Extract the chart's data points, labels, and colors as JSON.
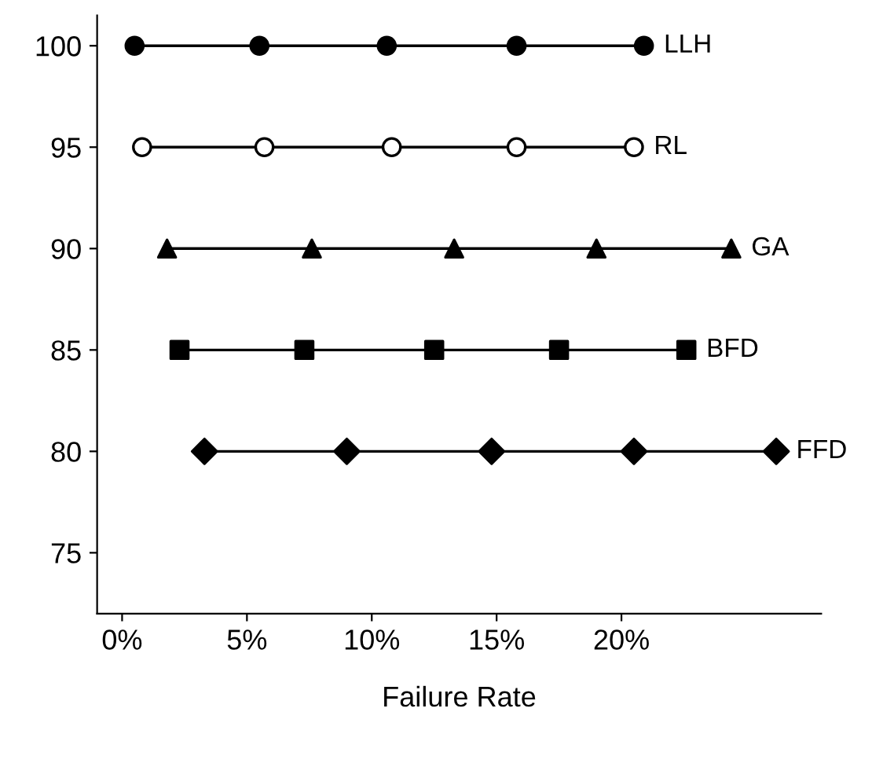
{
  "chart_data": {
    "type": "line",
    "xlabel": "Failure Rate",
    "xlim": [
      -1,
      28
    ],
    "ylim": [
      72,
      101.5
    ],
    "xticks": [
      {
        "value": 0,
        "label": "0%"
      },
      {
        "value": 5,
        "label": "5%"
      },
      {
        "value": 10,
        "label": "10%"
      },
      {
        "value": 15,
        "label": "15%"
      },
      {
        "value": 20,
        "label": "20%"
      }
    ],
    "yticks": [
      75,
      80,
      85,
      90,
      95,
      100
    ],
    "grid": false,
    "legend": false,
    "line_style": "solid",
    "series": [
      {
        "name": "LLH",
        "color": "#000000",
        "marker": "circle",
        "x": [
          0.5,
          5.5,
          10.6,
          15.8,
          20.9
        ],
        "values": [
          100,
          100,
          100,
          100,
          100
        ]
      },
      {
        "name": "RL",
        "color": "#000000",
        "marker": "circle",
        "colors": [
          "#ffffff",
          "#ffffff",
          "#ffffff",
          "#ffffff",
          "#ffffff"
        ],
        "x": [
          0.8,
          5.7,
          10.8,
          15.8,
          20.5
        ],
        "values": [
          95,
          95,
          95,
          95,
          95
        ]
      },
      {
        "name": "GA",
        "color": "#000000",
        "marker": "triangle",
        "x": [
          1.8,
          7.6,
          13.3,
          19.0,
          24.4
        ],
        "values": [
          90,
          90,
          90,
          90,
          90
        ]
      },
      {
        "name": "BFD",
        "color": "#000000",
        "marker": "square",
        "x": [
          2.3,
          7.3,
          12.5,
          17.5,
          22.6
        ],
        "values": [
          85,
          85,
          85,
          85,
          85
        ]
      },
      {
        "name": "FFD",
        "color": "#000000",
        "marker": "diamond",
        "x": [
          3.3,
          9.0,
          14.8,
          20.5,
          26.2
        ],
        "values": [
          80,
          80,
          80,
          80,
          80
        ]
      }
    ]
  }
}
